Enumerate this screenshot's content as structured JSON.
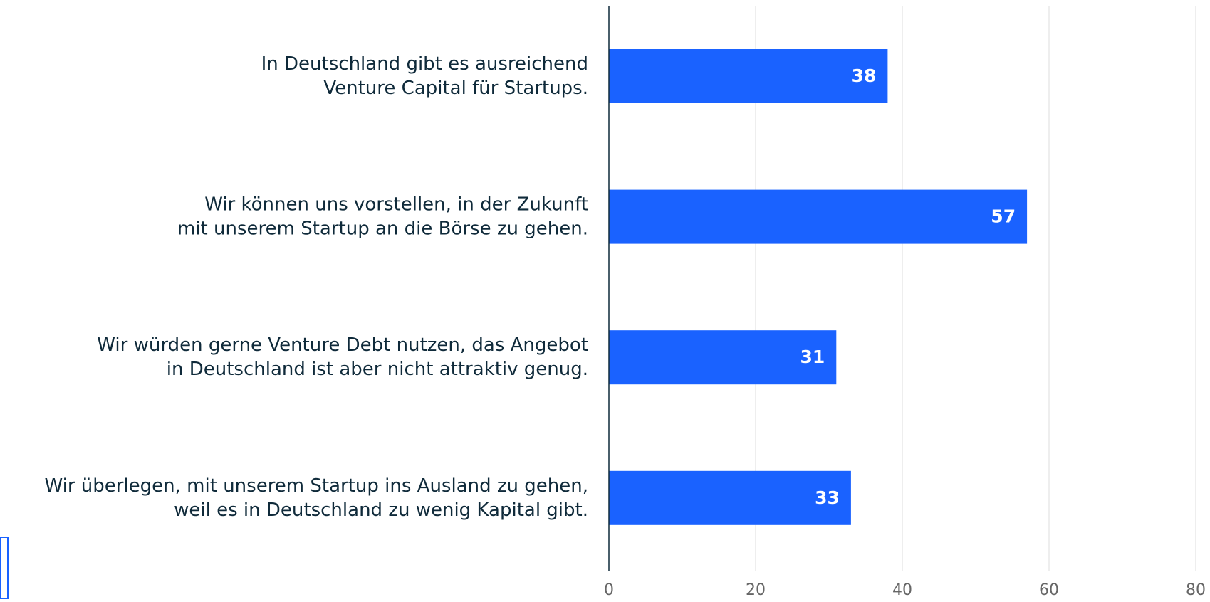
{
  "chart_data": {
    "type": "bar",
    "orientation": "horizontal",
    "categories": [
      [
        "In Deutschland gibt es ausreichend",
        "Venture Capital für Startups."
      ],
      [
        "Wir können uns vorstellen, in der Zukunft",
        "mit unserem Startup an die Börse zu gehen."
      ],
      [
        "Wir würden gerne Venture Debt nutzen, das Angebot",
        "in Deutschland ist aber nicht attraktiv genug."
      ],
      [
        "Wir überlegen, mit unserem Startup ins Ausland zu gehen,",
        "weil es in Deutschland zu wenig Kapital gibt."
      ]
    ],
    "values": [
      38,
      57,
      31,
      33
    ],
    "color": "#1a62ff",
    "xlim": [
      0,
      80
    ],
    "xticks": [
      0,
      20,
      40,
      60,
      80
    ],
    "grid": true
  }
}
